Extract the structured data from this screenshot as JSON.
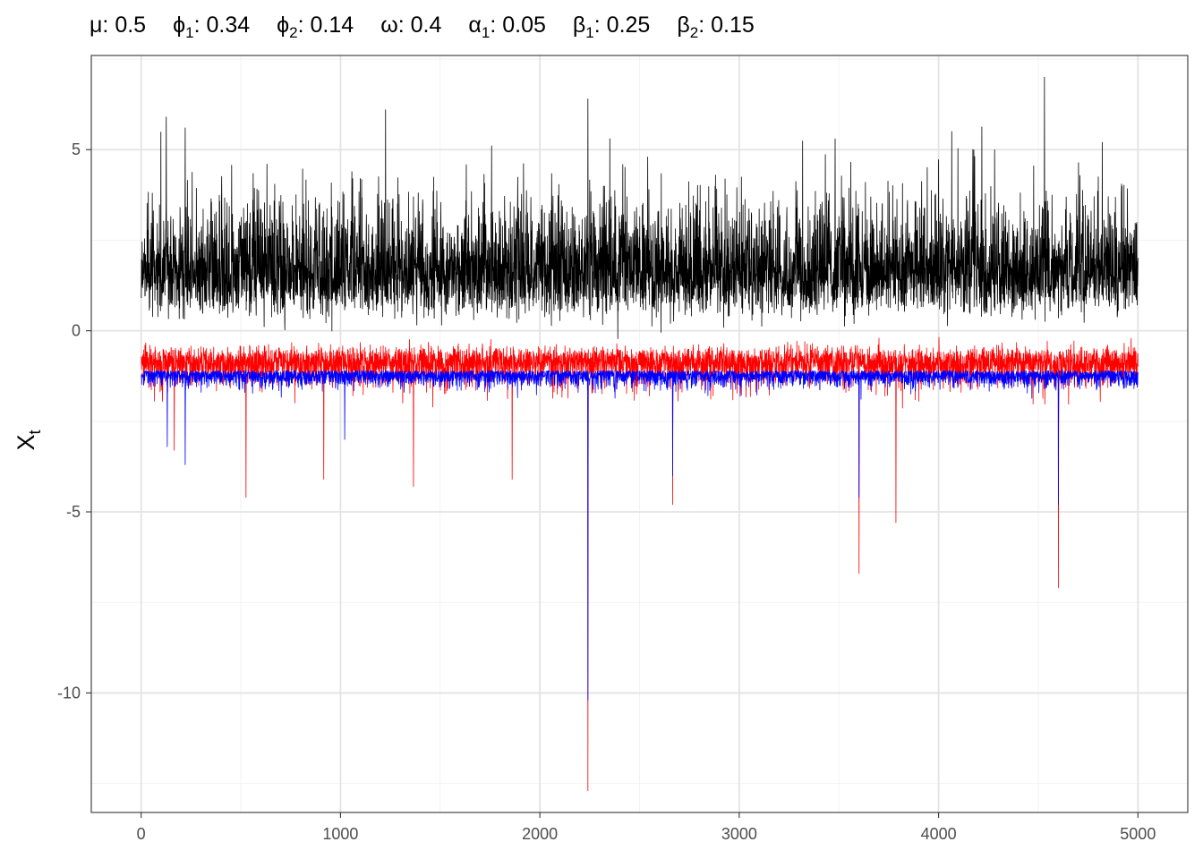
{
  "chart_data": {
    "type": "line",
    "parameters": [
      {
        "symbol": "μ",
        "subscript": "",
        "value": "0.5"
      },
      {
        "symbol": "ϕ",
        "subscript": "1",
        "value": "0.34"
      },
      {
        "symbol": "ϕ",
        "subscript": "2",
        "value": "0.14"
      },
      {
        "symbol": "ω",
        "subscript": "",
        "value": "0.4"
      },
      {
        "symbol": "α",
        "subscript": "1",
        "value": "0.05"
      },
      {
        "symbol": "β",
        "subscript": "1",
        "value": "0.25"
      },
      {
        "symbol": "β",
        "subscript": "2",
        "value": "0.15"
      }
    ],
    "xlabel": "",
    "ylabel": {
      "main": "X",
      "sub": "t"
    },
    "xlim": [
      -250,
      5250
    ],
    "ylim": [
      -13.3,
      7.6
    ],
    "x_ticks": [
      0,
      1000,
      2000,
      3000,
      4000,
      5000
    ],
    "x_tick_labels": [
      "0",
      "1000",
      "2000",
      "3000",
      "4000",
      "5000"
    ],
    "y_ticks": [
      -10,
      -5,
      0,
      5
    ],
    "y_tick_labels": [
      "-10",
      "-5",
      "0",
      "5"
    ],
    "grid": true,
    "n_points": 5000,
    "series": [
      {
        "color": "#000000",
        "baseline": 0.75,
        "spread": 0.9,
        "x_max": [
          5,
          125,
          220,
          630,
          1225,
          2240,
          2540,
          3480,
          4065,
          4530,
          4820
        ],
        "y_max": [
          2.0,
          5.9,
          5.6,
          4.6,
          6.1,
          6.4,
          4.8,
          5.3,
          5.5,
          7.0,
          5.2
        ]
      },
      {
        "color": "#ff0000",
        "baseline": -0.6,
        "spread": 0.3,
        "x_min": [
          165,
          525,
          915,
          1365,
          1860,
          2240,
          2665,
          3600,
          3785,
          4600
        ],
        "y_min": [
          -3.3,
          -4.6,
          -4.1,
          -4.3,
          -4.1,
          -12.7,
          -4.8,
          -6.7,
          -5.3,
          -7.1
        ]
      },
      {
        "color": "#0000ff",
        "baseline": -1.1,
        "spread": 0.12,
        "x_min": [
          130,
          220,
          1020,
          2240,
          2665,
          3600,
          4600
        ],
        "y_min": [
          -3.2,
          -3.7,
          -3.0,
          -10.2,
          -4.0,
          -4.6,
          -4.8
        ]
      }
    ]
  },
  "colors": {
    "panel_border": "#333333",
    "grid_major": "#e3e3e3",
    "grid_minor": "#f2f2f2",
    "tick_label": "#4d4d4d"
  }
}
